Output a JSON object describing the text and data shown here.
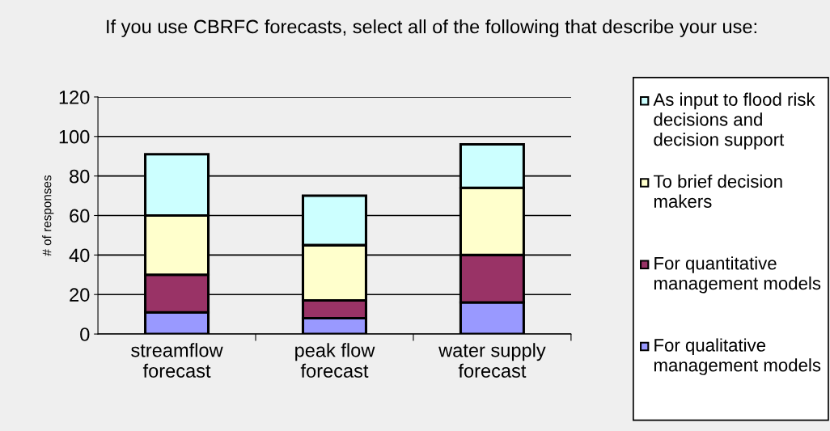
{
  "chart_data": {
    "type": "bar",
    "stacked": true,
    "title": "If you use CBRFC forecasts, select all of the following that describe your use:",
    "ylabel": "# of responses",
    "categories": [
      "streamflow\nforecast",
      "peak flow\nforecast",
      "water supply\nforecast"
    ],
    "series": [
      {
        "name": "For qualitative management models",
        "color": "#9999ff",
        "values": [
          11,
          8,
          16
        ]
      },
      {
        "name": "For quantitative management models",
        "color": "#993366",
        "values": [
          19,
          9,
          24
        ]
      },
      {
        "name": "To brief decision makers",
        "color": "#ffffcc",
        "values": [
          30,
          28,
          34
        ]
      },
      {
        "name": "As input to flood risk decisions and decision support",
        "color": "#ccffff",
        "values": [
          31,
          25,
          22
        ]
      }
    ],
    "ylim": [
      0,
      120
    ],
    "yticks": [
      0,
      20,
      40,
      60,
      80,
      100,
      120
    ],
    "grid": "y",
    "legend": "right"
  }
}
